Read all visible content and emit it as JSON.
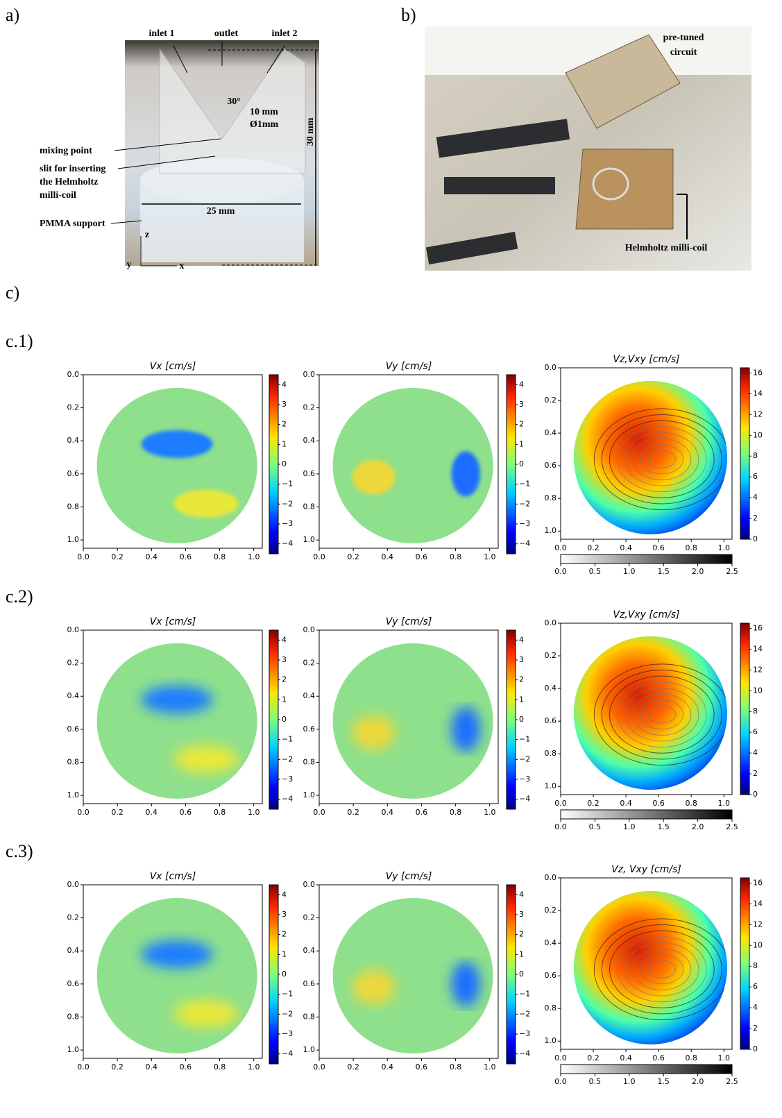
{
  "panel_a": {
    "label": "a)",
    "annotations": [
      "inlet 1",
      "outlet",
      "inlet 2",
      "30°",
      "10 mm",
      "Ø1mm",
      "mixing point",
      "slit for inserting",
      "the Helmholtz",
      "milli-coil",
      "30 mm",
      "25 mm",
      "PMMA support",
      "z",
      "y",
      "x"
    ]
  },
  "panel_b": {
    "label": "b)",
    "annotations": [
      "pre-tuned",
      "circuit",
      "Helmholtz milli-coil"
    ]
  },
  "panel_c": {
    "label": "c)",
    "rows": [
      {
        "label": "c.1)",
        "titles": [
          "Vx [cm/s]",
          "Vy [cm/s]",
          "Vz,Vxy [cm/s]"
        ]
      },
      {
        "label": "c.2)",
        "titles": [
          "Vx [cm/s]",
          "Vy [cm/s]",
          "Vz,Vxy [cm/s]"
        ]
      },
      {
        "label": "c.3)",
        "titles": [
          "Vx [cm/s]",
          "Vy [cm/s]",
          "Vz, Vxy [cm/s]"
        ]
      }
    ]
  },
  "axes": {
    "lim": [
      0,
      1.05
    ],
    "ticks": [
      {
        "value": 0,
        "label": "0.0"
      },
      0.2,
      0.4,
      0.6,
      0.8,
      {
        "value": 1,
        "label": "1.0"
      }
    ]
  },
  "velocity_colorbar": {
    "lim": [
      -4.5,
      4.5
    ],
    "ticks": [
      {
        "value": -4,
        "label": "−4"
      },
      {
        "value": -3,
        "label": "−3"
      },
      {
        "value": -2,
        "label": "−2"
      },
      {
        "value": -1,
        "label": "−1"
      },
      0,
      1,
      2,
      3,
      4
    ]
  },
  "vz_colorbar": {
    "lim": [
      0,
      16.5
    ],
    "ticks": [
      0,
      2,
      4,
      6,
      8,
      10,
      12,
      14,
      16
    ]
  },
  "vxy_colorbar": {
    "lim": [
      0,
      2.5
    ],
    "ticks": [
      {
        "value": 0,
        "label": "0.0"
      },
      0.5,
      {
        "value": 1,
        "label": "1.0"
      },
      1.5,
      {
        "value": 2,
        "label": "2.0"
      },
      2.5
    ]
  }
}
